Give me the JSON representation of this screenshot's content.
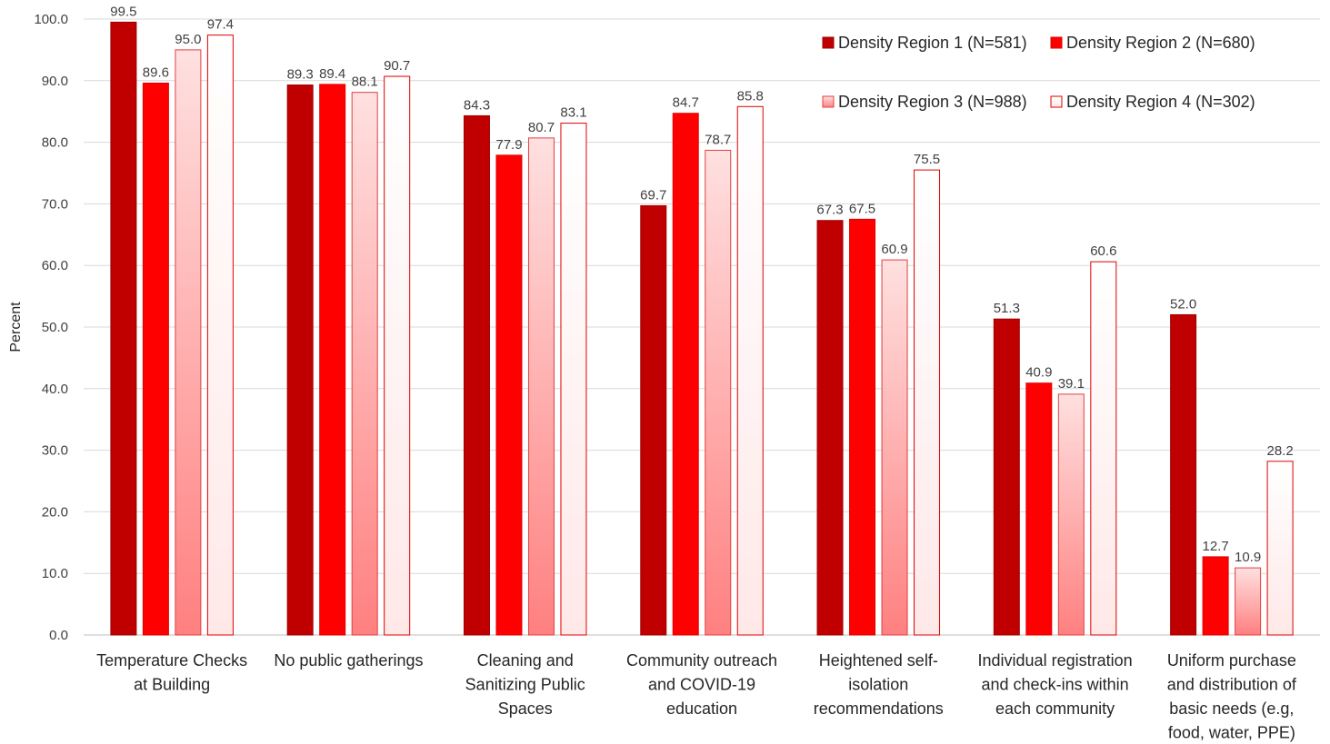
{
  "chart_data": {
    "type": "bar",
    "ylabel": "Percent",
    "ylim": [
      0,
      100
    ],
    "yticks": [
      "0.0",
      "10.0",
      "20.0",
      "30.0",
      "40.0",
      "50.0",
      "60.0",
      "70.0",
      "80.0",
      "90.0",
      "100.0"
    ],
    "grid": true,
    "legend_position": "top-right",
    "categories": [
      [
        "Temperature Checks",
        "at Building"
      ],
      [
        "No public gatherings"
      ],
      [
        "Cleaning and",
        "Sanitizing Public",
        "Spaces"
      ],
      [
        "Community outreach",
        "and COVID-19",
        "education"
      ],
      [
        "Heightened self-",
        "isolation",
        "recommendations"
      ],
      [
        "Individual registration",
        "and check-ins within",
        "each community"
      ],
      [
        "Uniform purchase",
        "and distribution of",
        "basic needs (e.g,",
        "food, water, PPE)"
      ]
    ],
    "series": [
      {
        "name": "Density Region 1 (N=581)",
        "color": "#C00000",
        "style": "solid",
        "values": [
          99.5,
          89.3,
          84.3,
          69.7,
          67.3,
          51.3,
          52.0
        ],
        "labels": [
          "99.5",
          "89.3",
          "84.3",
          "69.7",
          "67.3",
          "51.3",
          "52.0"
        ]
      },
      {
        "name": "Density Region 2 (N=680)",
        "color": "#FF0000",
        "style": "solid",
        "values": [
          89.6,
          89.4,
          77.9,
          84.7,
          67.5,
          40.9,
          12.7
        ],
        "labels": [
          "89.6",
          "89.4",
          "77.9",
          "84.7",
          "67.5",
          "40.9",
          "12.7"
        ]
      },
      {
        "name": "Density Region 3 (N=988)",
        "color": "#FF8080",
        "style": "gradient-light-to-pink",
        "values": [
          95.0,
          88.1,
          80.7,
          78.7,
          60.9,
          39.1,
          10.9
        ],
        "labels": [
          "95.0",
          "88.1",
          "80.7",
          "78.7",
          "60.9",
          "39.1",
          "10.9"
        ]
      },
      {
        "name": "Density Region 4 (N=302)",
        "color": "#FFF0F0",
        "style": "light-outlined",
        "values": [
          97.4,
          90.7,
          83.1,
          85.8,
          75.5,
          60.6,
          28.2
        ],
        "labels": [
          "97.4",
          "90.7",
          "83.1",
          "85.8",
          "75.5",
          "60.6",
          "28.2"
        ]
      }
    ]
  }
}
